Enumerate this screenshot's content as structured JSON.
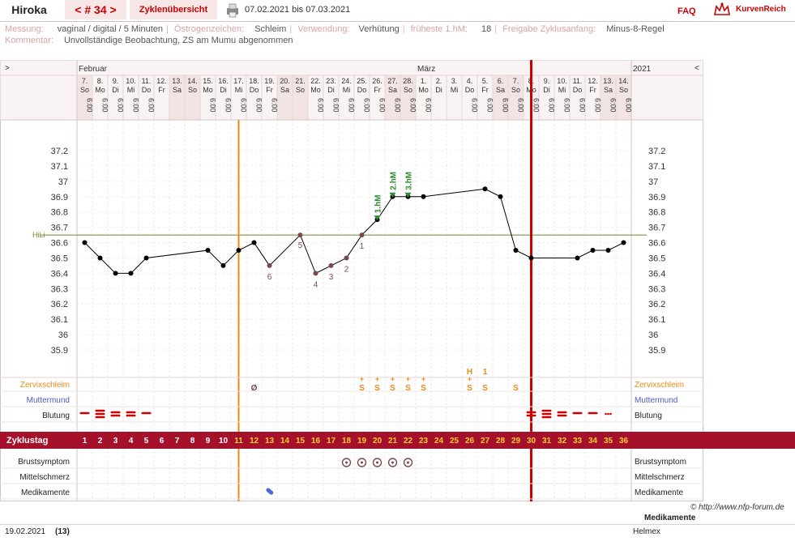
{
  "header": {
    "user": "Hiroka",
    "cycle_nav": "< # 34 >",
    "overview_link": "Zyklenübersicht",
    "date_range": "07.02.2021 bis 07.03.2021",
    "faq": "FAQ",
    "brand": "KurvenReich"
  },
  "info": {
    "messung_label": "Messung:",
    "messung_value": "vaginal / digital / 5 Minuten",
    "oestrogen_label": "Östrogenzeichen:",
    "oestrogen_value": "Schleim",
    "verwendung_label": "Verwendung:",
    "verwendung_value": "Verhütung",
    "hm_label": "früheste 1.hM:",
    "hm_value": "18",
    "freigabe_label": "Freigabe Zyklusanfang:",
    "freigabe_value": "Minus-8-Regel",
    "kommentar_label": "Kommentar:",
    "kommentar_value": "Unvollständige Beobachtung, ZS am Mumu abgenommen"
  },
  "chart_data": {
    "type": "line",
    "month_labels": [
      {
        "day": 1,
        "text": "Februar"
      },
      {
        "day": 23,
        "text": "März"
      },
      {
        "day": 37,
        "text": "2021"
      }
    ],
    "nav_left": ">",
    "nav_right": "<",
    "dates": [
      "7.",
      "8.",
      "9.",
      "10.",
      "11.",
      "12.",
      "13.",
      "14.",
      "15.",
      "16.",
      "17.",
      "18.",
      "19.",
      "20.",
      "21.",
      "22.",
      "23.",
      "24.",
      "25.",
      "26.",
      "27.",
      "28.",
      "1.",
      "2.",
      "3.",
      "4.",
      "5.",
      "6.",
      "7.",
      "8.",
      "9.",
      "10.",
      "11.",
      "12.",
      "13.",
      "14."
    ],
    "weekdays": [
      "So",
      "Mo",
      "Di",
      "Mi",
      "Do",
      "Fr",
      "Sa",
      "So",
      "Mo",
      "Di",
      "Mi",
      "Do",
      "Fr",
      "Sa",
      "So",
      "Mo",
      "Di",
      "Mi",
      "Do",
      "Fr",
      "Sa",
      "So",
      "Mo",
      "Di",
      "Mi",
      "Do",
      "Fr",
      "Sa",
      "So",
      "Mo",
      "Di",
      "Mi",
      "Do",
      "Fr",
      "Sa",
      "So"
    ],
    "times": [
      "6:00",
      "6:00",
      "6:00",
      "6:00",
      "6:00",
      "",
      "",
      "",
      "6:00",
      "6:00",
      "6:00",
      "6:00",
      "6:00",
      "",
      "",
      "6:00",
      "6:00",
      "6:00",
      "6:00",
      "6:00",
      "6:00",
      "6:00",
      "6:00",
      "",
      "",
      "6:00",
      "6:00",
      "6:00",
      "6:00",
      "6:00",
      "6:00",
      "6:00",
      "6:00",
      "6:00",
      "6:00",
      "6:00"
    ],
    "weekend_days": [
      1,
      7,
      8,
      14,
      15,
      21,
      22,
      28,
      29,
      35,
      36
    ],
    "cycle_days": [
      "1",
      "2",
      "3",
      "4",
      "5",
      "6",
      "7",
      "8",
      "9",
      "10",
      "11",
      "12",
      "13",
      "14",
      "15",
      "16",
      "17",
      "18",
      "19",
      "20",
      "21",
      "22",
      "23",
      "24",
      "25",
      "26",
      "27",
      "28",
      "29",
      "30",
      "31",
      "32",
      "33",
      "34",
      "35",
      "36"
    ],
    "y_ticks": [
      "37.2",
      "37.1",
      "37",
      "36.9",
      "36.8",
      "36.7",
      "36.6",
      "36.5",
      "36.4",
      "36.3",
      "36.2",
      "36.1",
      "36",
      "35.9"
    ],
    "ylim": [
      35.9,
      37.2
    ],
    "coverline": {
      "value": 36.65,
      "label": "HiLi"
    },
    "series": [
      {
        "points": [
          {
            "day": 1,
            "temp": 36.6
          },
          {
            "day": 2,
            "temp": 36.5
          },
          {
            "day": 3,
            "temp": 36.4
          },
          {
            "day": 4,
            "temp": 36.4
          },
          {
            "day": 5,
            "temp": 36.5
          },
          {
            "day": 9,
            "temp": 36.55
          },
          {
            "day": 10,
            "temp": 36.45
          },
          {
            "day": 11,
            "temp": 36.55
          },
          {
            "day": 12,
            "temp": 36.6
          },
          {
            "day": 13,
            "temp": 36.45
          },
          {
            "day": 15,
            "temp": 36.65
          },
          {
            "day": 16,
            "temp": 36.4
          },
          {
            "day": 17,
            "temp": 36.45
          },
          {
            "day": 18,
            "temp": 36.5
          },
          {
            "day": 19,
            "temp": 36.65
          },
          {
            "day": 20,
            "temp": 36.75
          },
          {
            "day": 21,
            "temp": 36.9
          },
          {
            "day": 22,
            "temp": 36.9
          },
          {
            "day": 23,
            "temp": 36.9
          },
          {
            "day": 27,
            "temp": 36.95
          },
          {
            "day": 28,
            "temp": 36.9
          },
          {
            "day": 29,
            "temp": 36.55
          },
          {
            "day": 30,
            "temp": 36.5
          },
          {
            "day": 33,
            "temp": 36.5
          },
          {
            "day": 34,
            "temp": 36.55
          },
          {
            "day": 35,
            "temp": 36.55
          },
          {
            "day": 36,
            "temp": 36.6
          }
        ]
      }
    ],
    "low_markers": [
      {
        "day": 13,
        "text": "6"
      },
      {
        "day": 15,
        "text": "5"
      },
      {
        "day": 16,
        "text": "4"
      },
      {
        "day": 17,
        "text": "3"
      },
      {
        "day": 18,
        "text": "2"
      },
      {
        "day": 19,
        "text": "1"
      }
    ],
    "high_markers": [
      {
        "day": 20,
        "text": "1.hM"
      },
      {
        "day": 21,
        "text": "2.hM"
      },
      {
        "day": 22,
        "text": "3.hM"
      }
    ],
    "orange_line_day": 10.5,
    "red_line_day": 29.5,
    "rows": {
      "zervix_label": "Zervixschleim",
      "muttermund_label": "Muttermund",
      "blutung_label": "Blutung",
      "zyklustag_label": "Zyklustag",
      "brust_label": "Brustsymptom",
      "mittel_label": "Mittelschmerz",
      "medi_label": "Medikamente"
    },
    "zervix": [
      {
        "day": 12,
        "text": "Ø"
      },
      {
        "day": 19,
        "text": "S+"
      },
      {
        "day": 20,
        "text": "S+"
      },
      {
        "day": 21,
        "text": "S+"
      },
      {
        "day": 22,
        "text": "S+"
      },
      {
        "day": 23,
        "text": "S+"
      },
      {
        "day": 26,
        "text": "S+"
      },
      {
        "day": 27,
        "text": "S"
      },
      {
        "day": 29,
        "text": "S"
      }
    ],
    "muttermund_marks": [
      {
        "day": 26,
        "text": "H"
      },
      {
        "day": 27,
        "text": "1"
      }
    ],
    "blutung": [
      {
        "day": 1,
        "level": 1
      },
      {
        "day": 2,
        "level": 3
      },
      {
        "day": 3,
        "level": 2
      },
      {
        "day": 4,
        "level": 2
      },
      {
        "day": 5,
        "level": 1
      },
      {
        "day": 30,
        "level": 2
      },
      {
        "day": 31,
        "level": 3
      },
      {
        "day": 32,
        "level": 2
      },
      {
        "day": 33,
        "level": 1
      },
      {
        "day": 34,
        "level": 1
      },
      {
        "day": 35,
        "level": 0
      }
    ],
    "brust_days": [
      18,
      19,
      20,
      21,
      22
    ],
    "medi_days": [
      13
    ]
  },
  "footer": {
    "copyright": "© http://www.nfp-forum.de",
    "medi_title": "Medikamente",
    "date": "19.02.2021",
    "count": "(13)",
    "medi_value": "Helmex"
  },
  "colors": {
    "accent_red": "#cc0000",
    "cycle_bar": "#a5102a",
    "orange": "#e88a1a",
    "weekend": "#f3e4e4",
    "coverline": "#6b8e23",
    "high_marker": "#2e8b2e",
    "low_marker": "#7a4a4a"
  }
}
